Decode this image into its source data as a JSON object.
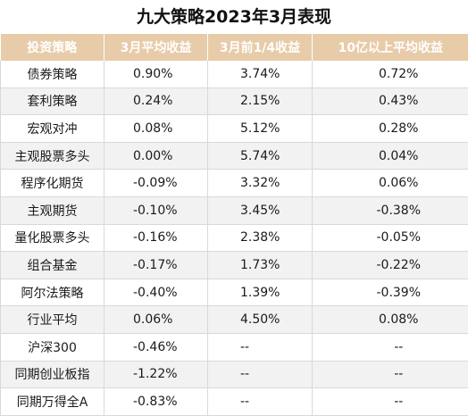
{
  "title": "九大策略2023年3月表现",
  "colors": {
    "header_bg": "#e8cba8",
    "header_text": "#ffffff",
    "row_alt": "#f2f2f2",
    "grid": "#d9d9d9"
  },
  "table": {
    "headers": [
      "投资策略",
      "3月平均收益",
      "3月前1/4收益",
      "10亿以上平均收益"
    ],
    "rows": [
      [
        "债券策略",
        "0.90%",
        "3.74%",
        "0.72%"
      ],
      [
        "套利策略",
        "0.24%",
        "2.15%",
        "0.43%"
      ],
      [
        "宏观对冲",
        "0.08%",
        "5.12%",
        "0.28%"
      ],
      [
        "主观股票多头",
        "0.00%",
        "5.74%",
        "0.04%"
      ],
      [
        "程序化期货",
        "-0.09%",
        "3.32%",
        "0.06%"
      ],
      [
        "主观期货",
        "-0.10%",
        "3.45%",
        "-0.38%"
      ],
      [
        "量化股票多头",
        "-0.16%",
        "2.38%",
        "-0.05%"
      ],
      [
        "组合基金",
        "-0.17%",
        "1.73%",
        "-0.22%"
      ],
      [
        "阿尔法策略",
        "-0.40%",
        "1.39%",
        "-0.39%"
      ],
      [
        "行业平均",
        "0.06%",
        "4.50%",
        "0.08%"
      ],
      [
        "沪深300",
        "-0.46%",
        "--",
        "--"
      ],
      [
        "同期创业板指",
        "-1.22%",
        "--",
        "--"
      ],
      [
        "同期万得全A",
        "-0.83%",
        "--",
        "--"
      ]
    ]
  }
}
